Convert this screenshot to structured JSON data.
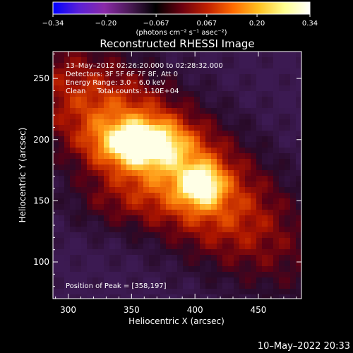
{
  "chart_data": {
    "type": "heatmap",
    "title": "Reconstructed RHESSI Image",
    "xlabel": "Heliocentric X (arcsec)",
    "ylabel": "Heliocentric Y (arcsec)",
    "xlim": [
      288,
      484
    ],
    "ylim": [
      70,
      272
    ],
    "x_ticks": [
      300,
      350,
      400,
      450
    ],
    "y_ticks": [
      100,
      150,
      200,
      250
    ],
    "colorbar": {
      "min": -0.34,
      "max": 0.34,
      "tick_values": [
        -0.34,
        -0.2,
        -0.067,
        0.067,
        0.2,
        0.34
      ],
      "tick_labels": [
        "−0.34",
        "−0.20",
        "−0.067",
        "0.067",
        "0.20",
        "0.34"
      ],
      "units_label": "(photons cm⁻² s⁻¹ asec⁻²)",
      "colors": [
        "#0000ff",
        "#5a20d8",
        "#8a2aa8",
        "#4a1a55",
        "#000000",
        "#6a0010",
        "#c02000",
        "#ff6a00",
        "#ffc020",
        "#ffff90",
        "#ffffff"
      ]
    },
    "annotations": [
      "13–May–2012 02:26:20.000 to 02:28:32.000",
      "Detectors: 3F 5F 6F 7F 8F, Att 0",
      "Energy Range: 3.0 – 6.0 keV",
      "Clean     Total counts: 1.10E+04"
    ],
    "peak_text": "Position of Peak = [358,197]",
    "peaks": [
      {
        "x": 358,
        "y": 197,
        "value": 0.34
      },
      {
        "x": 405,
        "y": 163,
        "value": 0.3
      }
    ],
    "grid": false
  },
  "footer": {
    "timestamp": "10–May–2022 20:33"
  }
}
